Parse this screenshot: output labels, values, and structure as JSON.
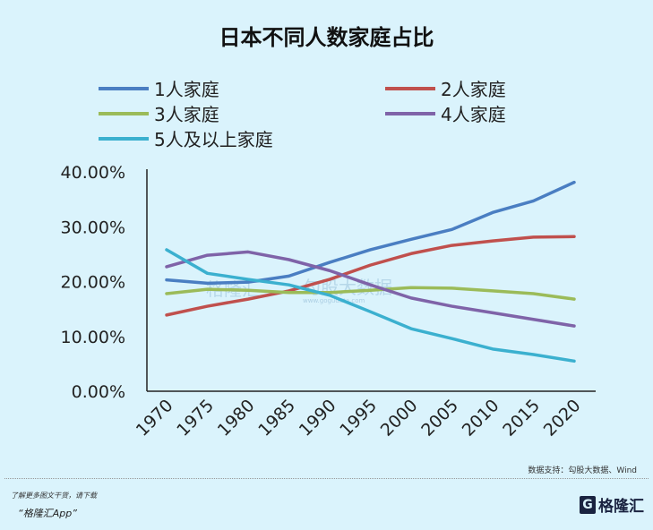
{
  "chart_data": {
    "type": "line",
    "title": "日本不同人数家庭占比",
    "xlabel": "",
    "ylabel": "",
    "x": [
      1970,
      1975,
      1980,
      1985,
      1990,
      1995,
      2000,
      2005,
      2010,
      2015,
      2020
    ],
    "x_tick_labels": [
      "1970",
      "1975",
      "1980",
      "1985",
      "1990",
      "1995",
      "2000",
      "2005",
      "2010",
      "2015",
      "2020"
    ],
    "ylim": [
      0,
      40
    ],
    "y_ticks": [
      0,
      10,
      20,
      30,
      40
    ],
    "y_tick_labels": [
      "0.00%",
      "10.00%",
      "20.00%",
      "30.00%",
      "40.00%"
    ],
    "grid": false,
    "legend_position": "top",
    "series": [
      {
        "name": "1人家庭",
        "color": "#4a7ec2",
        "values": [
          20.3,
          19.7,
          19.9,
          21.0,
          23.5,
          25.8,
          27.7,
          29.5,
          32.6,
          34.7,
          38.1
        ]
      },
      {
        "name": "2人家庭",
        "color": "#c0504d",
        "values": [
          13.9,
          15.5,
          16.8,
          18.3,
          20.4,
          23.0,
          25.1,
          26.6,
          27.4,
          28.1,
          28.2
        ]
      },
      {
        "name": "3人家庭",
        "color": "#9bbb59",
        "values": [
          17.8,
          18.6,
          18.4,
          18.0,
          18.0,
          18.4,
          18.9,
          18.8,
          18.3,
          17.8,
          16.8
        ]
      },
      {
        "name": "4人家庭",
        "color": "#7f63a8",
        "values": [
          22.7,
          24.8,
          25.4,
          24.0,
          22.0,
          19.4,
          17.0,
          15.5,
          14.3,
          13.1,
          11.9
        ]
      },
      {
        "name": "5人及以上家庭",
        "color": "#3bb0cf",
        "values": [
          25.8,
          21.5,
          20.4,
          19.4,
          17.5,
          14.5,
          11.4,
          9.6,
          7.7,
          6.7,
          5.5
        ]
      }
    ]
  },
  "source": "数据支持：勾股大数据、Wind",
  "footer": {
    "line1": "了解更多图文干货，请下载",
    "line2": "“格隆汇App”"
  },
  "logo": {
    "text": "格隆汇",
    "glyph": "G"
  },
  "watermark": {
    "brand1": "格隆汇",
    "brand2": "勾股大数据",
    "url": "www.gogudata.com"
  }
}
